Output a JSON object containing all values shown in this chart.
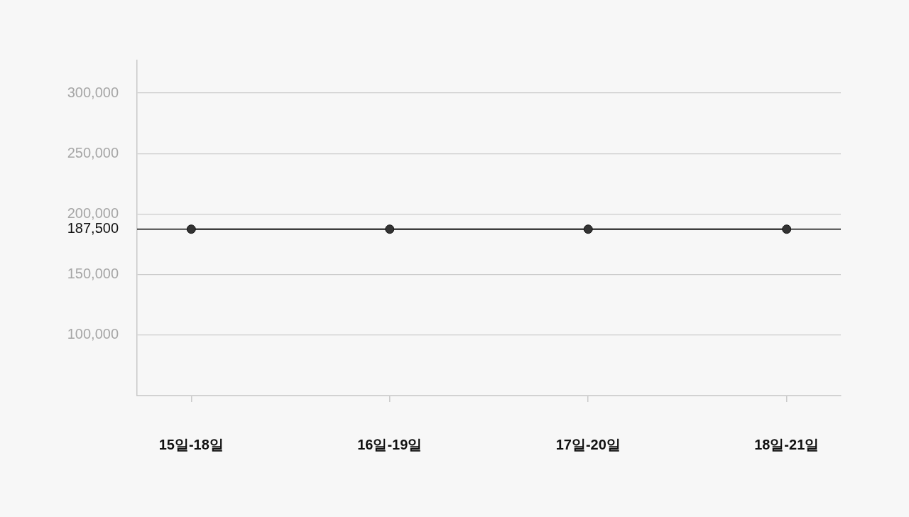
{
  "chart_data": {
    "type": "line",
    "categories": [
      "15일-18일",
      "16일-19일",
      "17일-20일",
      "18일-21일"
    ],
    "series": [
      {
        "color": "#333333",
        "values": [
          187500,
          187500,
          187500,
          187500
        ]
      }
    ],
    "ylim": [
      50000,
      327000
    ],
    "yticks": [
      {
        "value": 100000,
        "label": "100,000"
      },
      {
        "value": 150000,
        "label": "150,000"
      },
      {
        "value": 200000,
        "label": "200,000"
      },
      {
        "value": 250000,
        "label": "250,000"
      },
      {
        "value": 300000,
        "label": "300,000"
      }
    ],
    "ref_lines": [
      {
        "axis": "y",
        "value": 187500,
        "label": "187,500",
        "color": "#444444",
        "line_style": "solid"
      }
    ],
    "grid": "y",
    "legend": false,
    "marker": "circle",
    "line_style": "solid"
  }
}
